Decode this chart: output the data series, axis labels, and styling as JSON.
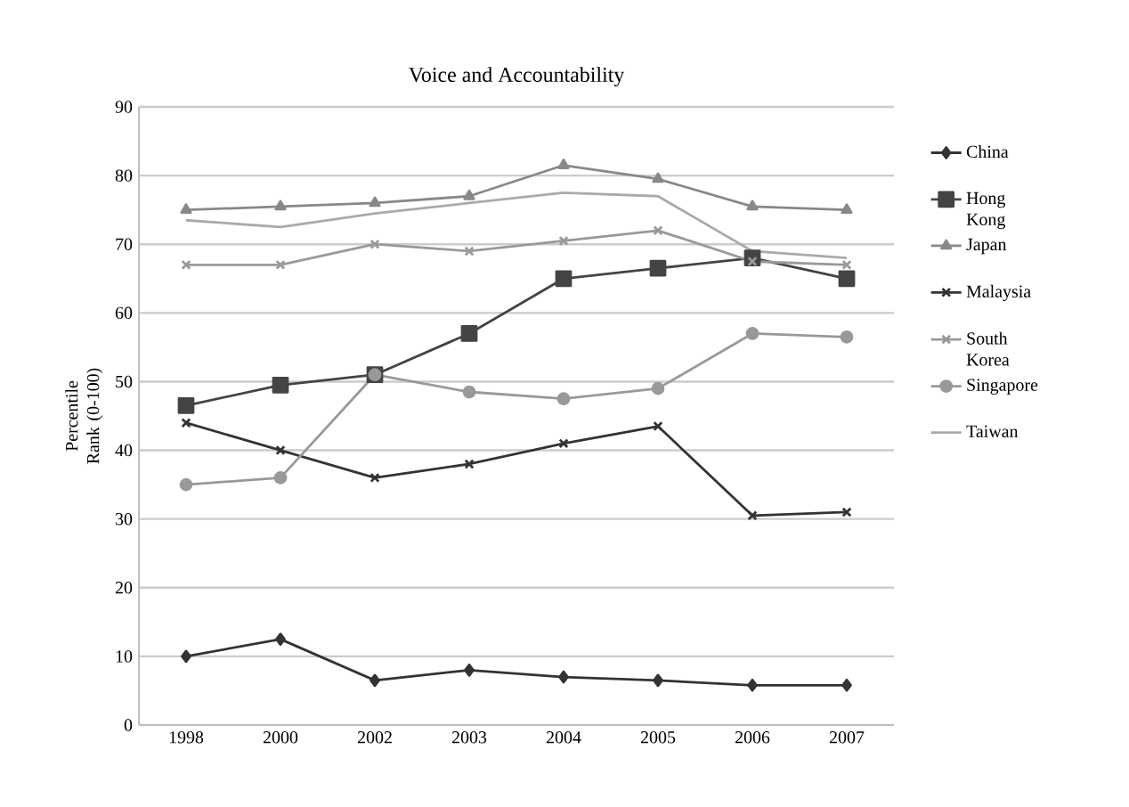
{
  "chart_data": {
    "type": "line",
    "title": "Voice and Accountability",
    "ylabel": "Percentile Rank (0-100)",
    "categories": [
      "1998",
      "2000",
      "2002",
      "2003",
      "2004",
      "2005",
      "2006",
      "2007"
    ],
    "series": [
      {
        "name": "China",
        "color": "#333333",
        "marker": "diamond",
        "values": [
          10,
          12.5,
          6.5,
          8,
          7,
          6.5,
          5.8,
          5.8
        ]
      },
      {
        "name": "Hong Kong",
        "color": "#444444",
        "marker": "square",
        "values": [
          46.5,
          49.5,
          51,
          57,
          65,
          66.5,
          68,
          65
        ]
      },
      {
        "name": "Japan",
        "color": "#888888",
        "marker": "triangle",
        "values": [
          75,
          75.5,
          76,
          77,
          81.5,
          79.5,
          75.5,
          75
        ]
      },
      {
        "name": "Malaysia",
        "color": "#333333",
        "marker": "cross",
        "values": [
          44,
          40,
          36,
          38,
          41,
          43.5,
          30.5,
          31
        ]
      },
      {
        "name": "South Korea",
        "color": "#999999",
        "marker": "cross",
        "values": [
          67,
          67,
          70,
          69,
          70.5,
          72,
          67.5,
          67
        ]
      },
      {
        "name": "Singapore",
        "color": "#999999",
        "marker": "circle",
        "values": [
          35,
          36,
          51,
          48.5,
          47.5,
          49,
          57,
          56.5
        ]
      },
      {
        "name": "Taiwan",
        "color": "#aaaaaa",
        "marker": "none",
        "values": [
          73.5,
          72.5,
          74.5,
          76,
          77.5,
          77,
          69,
          68
        ]
      }
    ],
    "ylim": [
      0,
      90
    ],
    "yticks": [
      0,
      10,
      20,
      30,
      40,
      50,
      60,
      70,
      80,
      90
    ],
    "grid": "y",
    "legend": "right",
    "line_style": "solid"
  }
}
